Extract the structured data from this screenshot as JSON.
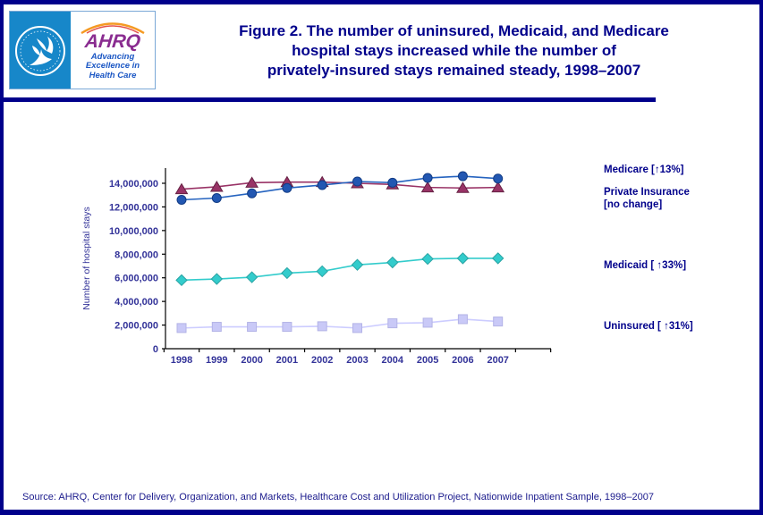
{
  "header": {
    "logo": {
      "hhs_seal": "hhs-eagle-seal",
      "org_acronym": "AHRQ",
      "tagline_lines": [
        "Advancing",
        "Excellence in",
        "Health Care"
      ]
    },
    "title_lines": [
      "Figure 2. The number of uninsured, Medicaid, and Medicare",
      "hospital stays increased while the number of",
      "privately-insured stays remained steady, 1998–2007"
    ]
  },
  "chart_data": {
    "type": "line",
    "title": "Figure 2. The number of uninsured, Medicaid, and Medicare hospital stays increased while the number of privately-insured stays remained steady, 1998–2007",
    "xlabel": "",
    "ylabel": "Number of hospital stays",
    "ylim": [
      0,
      14000000
    ],
    "grid": false,
    "legend_position": "right-annotations",
    "categories": [
      "1998",
      "1999",
      "2000",
      "2001",
      "2002",
      "2003",
      "2004",
      "2005",
      "2006",
      "2007"
    ],
    "y_ticks": [
      0,
      2000000,
      4000000,
      6000000,
      8000000,
      10000000,
      12000000,
      14000000
    ],
    "y_tick_labels": [
      "0",
      "2,000,000",
      "4,000,000",
      "6,000,000",
      "8,000,000",
      "10,000,000",
      "12,000,000",
      "14,000,000"
    ],
    "series": [
      {
        "name": "Uninsured",
        "marker": "square",
        "color": "#ccccff",
        "marker_fill": "#c9c9f7",
        "marker_stroke": "#b3b3e6",
        "values": [
          1750000,
          1850000,
          1850000,
          1850000,
          1900000,
          1750000,
          2150000,
          2200000,
          2500000,
          2300000
        ],
        "annotation": "Uninsured  [ ↑31%]"
      },
      {
        "name": "Medicaid",
        "marker": "diamond",
        "color": "#33cccc",
        "marker_fill": "#33cccc",
        "marker_stroke": "#29a3a3",
        "values": [
          5800000,
          5900000,
          6050000,
          6400000,
          6550000,
          7100000,
          7300000,
          7600000,
          7650000,
          7650000
        ],
        "annotation": "Medicaid [ ↑33%]"
      },
      {
        "name": "Private Insurance",
        "marker": "triangle",
        "color": "#993366",
        "marker_fill": "#993366",
        "marker_stroke": "#662244",
        "values": [
          13500000,
          13700000,
          14050000,
          14100000,
          14100000,
          14000000,
          13900000,
          13650000,
          13600000,
          13650000
        ],
        "annotation": "Private Insurance [no change]"
      },
      {
        "name": "Medicare",
        "marker": "circle",
        "color": "#2563bf",
        "marker_fill": "#2257b2",
        "marker_stroke": "#123c85",
        "values": [
          12600000,
          12750000,
          13150000,
          13600000,
          13850000,
          14150000,
          14050000,
          14450000,
          14600000,
          14400000
        ],
        "annotation": "Medicare  [↑13%]"
      }
    ]
  },
  "annotations": {
    "medicare": "Medicare  [↑13%]",
    "private_line1": "Private Insurance",
    "private_line2": "[no change]",
    "medicaid": "Medicaid [ ↑33%]",
    "uninsured": "Uninsured  [ ↑31%]"
  },
  "source": "Source: AHRQ, Center for Delivery, Organization, and Markets, Healthcare Cost and Utilization Project, Nationwide Inpatient Sample, 1998–2007",
  "colors": {
    "frame": "#00008B",
    "title_text": "#00008B",
    "tick_text": "#333399",
    "axis": "#000000",
    "hhs_blue": "#1787c9",
    "ahrq_purple": "#8a2c90",
    "tagline_blue": "#1a56c4"
  }
}
